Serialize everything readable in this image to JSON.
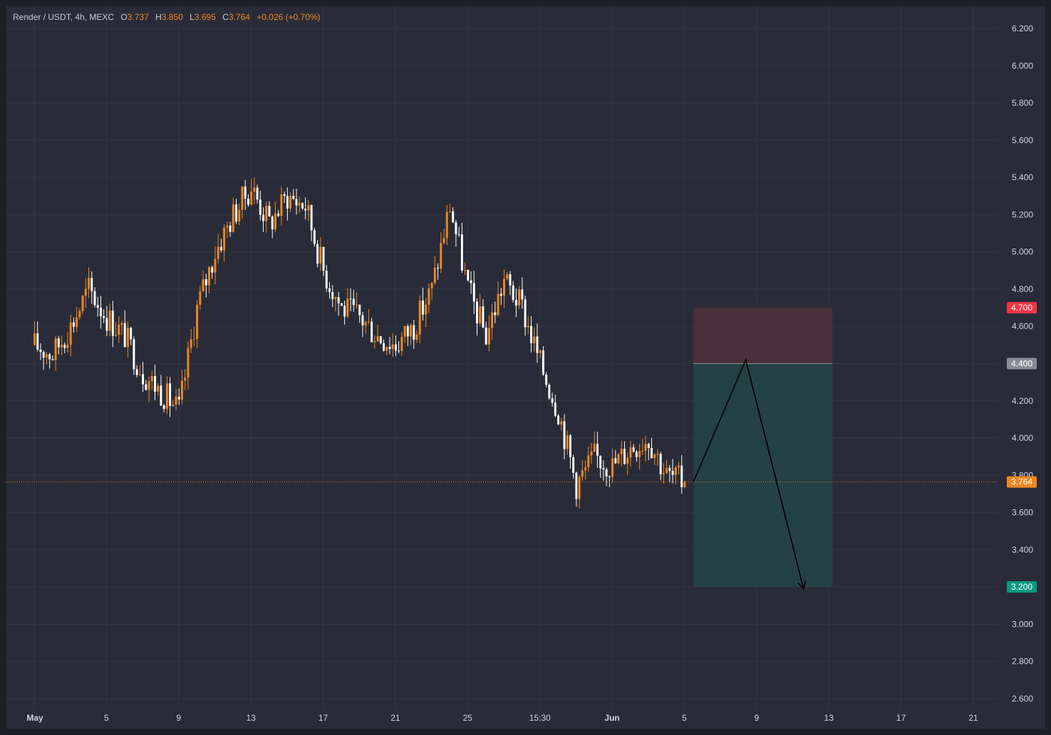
{
  "header": {
    "symbol": "Render / USDT, 4h, MEXC",
    "open_label": "O",
    "open": "3.737",
    "high_label": "H",
    "high": "3.850",
    "low_label": "L",
    "low": "3.695",
    "close_label": "C",
    "close": "3.764",
    "change": "+0.026 (+0.70%)"
  },
  "colors": {
    "background": "#292c38",
    "frame": "#1e2028",
    "up_candle": "#f0871f",
    "down_candle": "#ffffff",
    "grid": "#323643",
    "axis_text": "#d1d4dc",
    "stop_zone": "#4a2f3d",
    "target_zone": "#244145",
    "stop_badge": "#f23645",
    "entry_badge": "#8a8d96",
    "target_badge": "#089981",
    "price_badge": "#f0871f"
  },
  "chart_data": {
    "type": "candlestick",
    "title": "Render / USDT, 4h, MEXC",
    "ylim": [
      2.5,
      6.3
    ],
    "y_ticks": [
      "6.200",
      "6.000",
      "5.800",
      "5.600",
      "5.400",
      "5.200",
      "5.000",
      "4.800",
      "4.600",
      "4.400",
      "4.200",
      "4.000",
      "3.800",
      "3.600",
      "3.400",
      "3.200",
      "3.000",
      "2.800",
      "2.600"
    ],
    "x_ticks": [
      "May",
      "5",
      "9",
      "13",
      "17",
      "21",
      "25",
      "15:30",
      "Jun",
      "5",
      "9",
      "13",
      "17",
      "21"
    ],
    "x_tick_index": [
      0,
      4,
      8,
      12,
      16,
      20,
      24,
      28,
      32,
      36,
      40,
      44,
      48,
      52
    ],
    "days_shown": 53.5,
    "daily_path": [
      4.5,
      4.45,
      4.6,
      4.8,
      4.65,
      4.55,
      4.35,
      4.25,
      4.15,
      4.7,
      5.0,
      5.2,
      5.35,
      5.15,
      5.3,
      5.25,
      4.9,
      4.7,
      4.65,
      4.55,
      4.5,
      4.6,
      4.8,
      5.25,
      4.8,
      4.55,
      4.85,
      4.7,
      4.4,
      4.15,
      3.75,
      3.9,
      3.85,
      3.95,
      4.0,
      3.8,
      3.764
    ],
    "position": {
      "type": "short",
      "stop_loss": "4.700",
      "entry": "4.400",
      "take_profit": "3.200",
      "current_price": "3.764",
      "start_day": 36.5,
      "end_day": 44.2
    },
    "projection": {
      "points": [
        [
          36.5,
          3.764
        ],
        [
          39.4,
          4.42
        ],
        [
          42.6,
          3.19
        ]
      ]
    }
  }
}
